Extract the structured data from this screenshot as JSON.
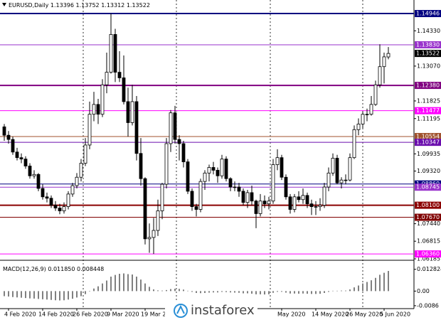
{
  "chart_data": {
    "type": "candlestick",
    "symbol": "EURUSD,Daily",
    "categories": [
      null,
      "4 Feb 2020",
      null,
      null,
      null,
      null,
      null,
      null,
      null,
      "14 Feb 2020",
      null,
      null,
      null,
      null,
      null,
      null,
      null,
      "26 Feb 2020",
      null,
      null,
      null,
      null,
      null,
      null,
      null,
      "9 Mar 2020",
      null,
      null,
      null,
      null,
      null,
      null,
      null,
      "19 Mar 2020",
      null,
      null,
      null,
      null,
      null,
      null,
      null,
      null,
      null,
      null,
      null,
      null,
      null,
      null,
      null,
      null,
      null,
      null,
      null,
      null,
      null,
      null,
      null,
      null,
      null,
      null,
      null,
      null,
      null,
      null,
      null,
      "May 2020",
      null,
      null,
      null,
      null,
      null,
      null,
      null,
      "14 May 2020",
      null,
      null,
      null,
      null,
      null,
      null,
      null,
      "26 May 2020",
      null,
      null,
      null,
      null,
      null,
      null,
      null,
      "5 Jun 2020",
      null
    ],
    "candles": [
      [
        1.109,
        1.11,
        1.104,
        1.106
      ],
      [
        1.106,
        1.1075,
        1.103,
        1.1045
      ],
      [
        1.1045,
        1.1055,
        1.099,
        1.1
      ],
      [
        1.1,
        1.1015,
        1.097,
        1.098
      ],
      [
        1.098,
        1.0995,
        1.096,
        1.0975
      ],
      [
        1.0975,
        1.0985,
        1.094,
        1.095
      ],
      [
        1.095,
        1.096,
        1.0905,
        1.0915
      ],
      [
        1.0915,
        1.0935,
        1.0905,
        1.092
      ],
      [
        1.092,
        1.0925,
        1.086,
        1.087
      ],
      [
        1.087,
        1.0885,
        1.083,
        1.084
      ],
      [
        1.084,
        1.0855,
        1.082,
        1.0835
      ],
      [
        1.0835,
        1.0845,
        1.08,
        1.081
      ],
      [
        1.081,
        1.0825,
        1.079,
        1.08
      ],
      [
        1.08,
        1.0815,
        1.0778,
        1.079
      ],
      [
        1.079,
        1.082,
        1.078,
        1.0805
      ],
      [
        1.0805,
        1.086,
        1.0795,
        1.085
      ],
      [
        1.085,
        1.089,
        1.084,
        1.088
      ],
      [
        1.088,
        1.0925,
        1.087,
        1.091
      ],
      [
        1.091,
        1.0975,
        1.0895,
        1.096
      ],
      [
        1.096,
        1.105,
        1.095,
        1.1025
      ],
      [
        1.1025,
        1.118,
        1.101,
        1.1135
      ],
      [
        1.1135,
        1.1215,
        1.111,
        1.117
      ],
      [
        1.117,
        1.119,
        1.11,
        1.1135
      ],
      [
        1.1135,
        1.126,
        1.1125,
        1.124
      ],
      [
        1.124,
        1.1355,
        1.121,
        1.1285
      ],
      [
        1.1285,
        1.1495,
        1.128,
        1.142
      ],
      [
        1.142,
        1.144,
        1.125,
        1.1285
      ],
      [
        1.1285,
        1.136,
        1.125,
        1.1265
      ],
      [
        1.1265,
        1.1345,
        1.117,
        1.118
      ],
      [
        1.118,
        1.123,
        1.1055,
        1.1105
      ],
      [
        1.1105,
        1.124,
        1.1095,
        1.118
      ],
      [
        1.118,
        1.12,
        1.097,
        1.0995
      ],
      [
        1.0995,
        1.105,
        1.088,
        1.0905
      ],
      [
        1.0905,
        1.091,
        1.067,
        1.069
      ],
      [
        1.069,
        1.0745,
        1.064,
        1.0695
      ],
      [
        1.0695,
        1.0765,
        1.0636,
        1.072
      ],
      [
        1.072,
        1.083,
        1.07,
        1.079
      ],
      [
        1.079,
        1.089,
        1.076,
        1.0885
      ],
      [
        1.0885,
        1.105,
        1.087,
        1.103
      ],
      [
        1.103,
        1.115,
        1.1,
        1.114
      ],
      [
        1.114,
        1.1165,
        1.103,
        1.1045
      ],
      [
        1.1045,
        1.106,
        1.097,
        1.103
      ],
      [
        1.103,
        1.104,
        1.0945,
        1.0965
      ],
      [
        1.0965,
        1.0975,
        1.085,
        1.086
      ],
      [
        1.086,
        1.087,
        1.079,
        1.0805
      ],
      [
        1.0805,
        1.0815,
        1.077,
        1.0795
      ],
      [
        1.0795,
        1.0905,
        1.0785,
        1.0895
      ],
      [
        1.0895,
        1.0935,
        1.0865,
        1.0925
      ],
      [
        1.0925,
        1.0955,
        1.0895,
        1.0945
      ],
      [
        1.0945,
        1.0965,
        1.092,
        1.0935
      ],
      [
        1.0935,
        1.0945,
        1.089,
        1.0915
      ],
      [
        1.0915,
        1.099,
        1.0905,
        1.0975
      ],
      [
        1.0975,
        1.0985,
        1.0895,
        1.0905
      ],
      [
        1.0905,
        1.091,
        1.086,
        1.0875
      ],
      [
        1.0875,
        1.0895,
        1.086,
        1.0875
      ],
      [
        1.0875,
        1.089,
        1.084,
        1.086
      ],
      [
        1.086,
        1.087,
        1.081,
        1.082
      ],
      [
        1.082,
        1.0865,
        1.08,
        1.0855
      ],
      [
        1.0855,
        1.088,
        1.081,
        1.0825
      ],
      [
        1.0825,
        1.083,
        1.0728,
        1.078
      ],
      [
        1.078,
        1.085,
        1.077,
        1.0825
      ],
      [
        1.0825,
        1.0845,
        1.08,
        1.0815
      ],
      [
        1.0815,
        1.084,
        1.0795,
        1.0825
      ],
      [
        1.0825,
        1.0975,
        1.0815,
        1.0955
      ],
      [
        1.0955,
        1.101,
        1.0935,
        1.098
      ],
      [
        1.098,
        1.099,
        1.09,
        1.091
      ],
      [
        1.091,
        1.092,
        1.083,
        1.084
      ],
      [
        1.084,
        1.085,
        1.078,
        1.0795
      ],
      [
        1.0795,
        1.085,
        1.0785,
        1.084
      ],
      [
        1.084,
        1.086,
        1.082,
        1.083
      ],
      [
        1.083,
        1.087,
        1.0815,
        1.0845
      ],
      [
        1.0845,
        1.0855,
        1.08,
        1.0815
      ],
      [
        1.0815,
        1.083,
        1.0775,
        1.0805
      ],
      [
        1.0805,
        1.0825,
        1.0775,
        1.0805
      ],
      [
        1.0805,
        1.0835,
        1.079,
        1.081
      ],
      [
        1.081,
        1.089,
        1.08,
        1.0875
      ],
      [
        1.0875,
        1.0945,
        1.086,
        1.0925
      ],
      [
        1.0925,
        1.0995,
        1.0915,
        1.0978
      ],
      [
        1.0978,
        1.099,
        1.0885,
        1.089
      ],
      [
        1.089,
        1.091,
        1.087,
        1.09
      ],
      [
        1.09,
        1.092,
        1.0885,
        1.09
      ],
      [
        1.09,
        1.0995,
        1.0895,
        1.098
      ],
      [
        1.098,
        1.1095,
        1.0975,
        1.108
      ],
      [
        1.108,
        1.112,
        1.106,
        1.11
      ],
      [
        1.11,
        1.1145,
        1.1085,
        1.1135
      ],
      [
        1.1135,
        1.1155,
        1.111,
        1.1135
      ],
      [
        1.1135,
        1.12,
        1.113,
        1.117
      ],
      [
        1.117,
        1.1255,
        1.1165,
        1.124
      ],
      [
        1.124,
        1.1385,
        1.123,
        1.1305
      ],
      [
        1.1305,
        1.1355,
        1.1245,
        1.134
      ],
      [
        1.13396,
        1.13752,
        1.13312,
        1.13522
      ]
    ],
    "ylim": [
      1.0616,
      1.1543
    ],
    "yticks": [
      {
        "value": 1.1433,
        "label": "1.14330"
      },
      {
        "value": 1.1307,
        "label": "1.13070"
      },
      1.11825,
      1.11195,
      1.09935,
      {
        "value": 1.0932,
        "label": "1.09320"
      },
      {
        "value": 1.0744,
        "label": "1.07440"
      },
      1.06815,
      1.06185
    ],
    "levels": [
      {
        "value": 1.14946,
        "color": "#000080",
        "width": 2
      },
      {
        "value": 1.1383,
        "label": "1.13830",
        "color": "#9932cc",
        "width": 1
      },
      {
        "value": 1.1238,
        "label": "1.12380",
        "color": "#800080",
        "width": 2
      },
      {
        "value": 1.11477,
        "color": "#ff00ff",
        "width": 1
      },
      {
        "value": 1.10554,
        "color": "#a0522d",
        "width": 1
      },
      {
        "value": 1.10347,
        "color": "#6a0dad",
        "width": 1
      },
      {
        "value": 1.0886,
        "label": "1.08860",
        "color": "#000080",
        "width": 1
      },
      {
        "value": 1.08745,
        "color": "#9932cc",
        "width": 1
      },
      {
        "value": 1.081,
        "label": "1.08100",
        "color": "#8b0000",
        "width": 2
      },
      {
        "value": 1.0767,
        "label": "1.07670",
        "color": "#800000",
        "width": 1
      },
      {
        "value": 1.0636,
        "label": "1.06360",
        "color": "#ff00ff",
        "width": 1
      }
    ],
    "macd": {
      "title": "MACD(12,26,9)",
      "readout": [
        {
          "value": 0.01185,
          "label": "0.011850"
        },
        0.008448
      ],
      "values": [
        -0.003,
        -0.0032,
        -0.0035,
        -0.0037,
        -0.0039,
        -0.0041,
        -0.0043,
        -0.0044,
        -0.0046,
        -0.0048,
        -0.005,
        -0.0052,
        -0.0054,
        -0.0055,
        -0.0054,
        -0.005,
        -0.0045,
        -0.0038,
        -0.003,
        -0.0018,
        -0.0002,
        0.0015,
        0.0028,
        0.0045,
        0.0062,
        0.0085,
        0.0095,
        0.0102,
        0.0104,
        0.01,
        0.0098,
        0.0085,
        0.0068,
        0.0045,
        0.0025,
        0.001,
        0.0004,
        0.0003,
        0.0006,
        0.0012,
        0.0014,
        0.0013,
        0.0009,
        0.0002,
        -0.0005,
        -0.0011,
        -0.0012,
        -0.0011,
        -0.0009,
        -0.0008,
        -0.0008,
        -0.0005,
        -0.0006,
        -0.0008,
        -0.0009,
        -0.001,
        -0.0013,
        -0.0013,
        -0.0015,
        -0.0019,
        -0.0019,
        -0.002,
        -0.0019,
        -0.001,
        -0.0004,
        -0.0004,
        -0.0009,
        -0.0014,
        -0.0014,
        -0.0015,
        -0.0014,
        -0.0016,
        -0.0017,
        -0.0017,
        -0.0016,
        -0.0011,
        -0.0005,
        0.0002,
        0.0002,
        0.0003,
        0.0003,
        0.001,
        0.0022,
        0.0033,
        0.0045,
        0.0054,
        0.0064,
        0.0078,
        0.0096,
        0.0108,
        0.01185
      ],
      "ylim": [
        -0.0099,
        0.0169
      ],
      "yticks": [
        0.012824,
        {
          "value": 0,
          "label": "0.00"
        },
        -0.0086
      ]
    },
    "watermark": "instaforex"
  }
}
